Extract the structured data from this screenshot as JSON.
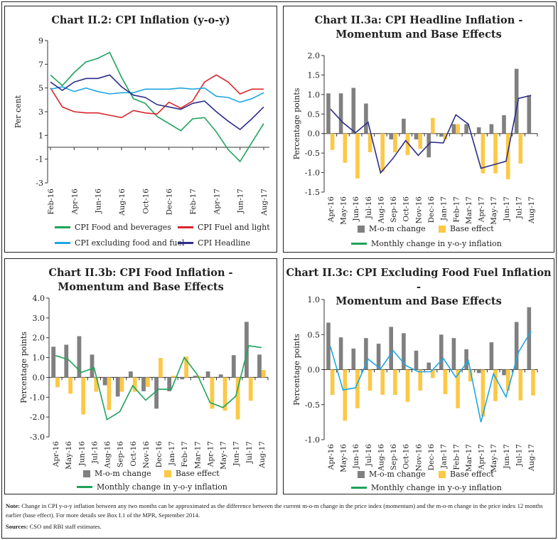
{
  "colors": {
    "food": "#1fa35a",
    "fuel": "#d9262b",
    "core": "#1ea7e1",
    "headline": "#2e2e8a",
    "mom": "#808080",
    "base": "#fcc846",
    "legend_line": "#1fa35a"
  },
  "charts": {
    "c22": {
      "title_lines": [
        "Chart II.2: CPI Inflation (y-o-y)"
      ]
    },
    "c3a": {
      "title_lines": [
        "Chart II.3a: CPI Headline Inflation -",
        "Momentum and Base Effects"
      ]
    },
    "c3b": {
      "title_lines": [
        "Chart II.3b: CPI  Food Inflation -",
        "Momentum and Base Effects"
      ]
    },
    "c3c": {
      "title_lines": [
        "Chart II.3c: CPI  Excluding Food Fuel Inflation -",
        "Momentum and Base Effects"
      ]
    }
  },
  "legend": {
    "food": "CPI Food and beverages",
    "fuel": "CPI Fuel and light",
    "core": "CPI excluding food and fuel",
    "headline": "CPI Headline",
    "mom": "M-o-m change",
    "base": "Base effect",
    "line": "Monthly change in y-o-y inflation"
  },
  "note": {
    "label": "Note:",
    "text": " Change in CPI y-o-y inflation between any two months can be approximated as the difference between the current m-o-m change in the price index (momentum) and the m-o-m change in the price index 12 months earlier (base effect). For more details  see Box I.1 of the MPR, September 2014.",
    "sources_label": "Sources:",
    "sources_text": " CSO and RBI staff estimates."
  },
  "chart_data": [
    {
      "id": "c22",
      "type": "line",
      "title": "Chart II.2: CPI Inflation (y-o-y)",
      "ylabel": "Per cent",
      "ylim": [
        -3,
        9
      ],
      "yticks": [
        "9",
        "7",
        "5",
        "3",
        "1",
        "-1",
        "-3"
      ],
      "x": [
        "Feb-16",
        "Mar-16",
        "Apr-16",
        "May-16",
        "Jun-16",
        "Jul-16",
        "Aug-16",
        "Sep-16",
        "Oct-16",
        "Nov-16",
        "Dec-16",
        "Jan-17",
        "Feb-17",
        "Mar-17",
        "Apr-17",
        "May-17",
        "Jun-17",
        "Jul-17",
        "Aug-17"
      ],
      "xtick_labels": [
        "Feb-16",
        "Apr-16",
        "Jun-16",
        "Aug-16",
        "Oct-16",
        "Dec-16",
        "Feb-17",
        "Apr-17",
        "Jun-17",
        "Aug-17"
      ],
      "series": [
        {
          "name": "CPI Food and beverages",
          "key": "food",
          "values": [
            6.1,
            5.2,
            6.3,
            7.2,
            7.5,
            8.0,
            5.9,
            4.1,
            3.7,
            2.6,
            2.0,
            1.4,
            2.4,
            2.5,
            1.3,
            -0.2,
            -1.2,
            0.4,
            2.0
          ]
        },
        {
          "name": "CPI Fuel and light",
          "key": "fuel",
          "values": [
            5.0,
            3.4,
            3.0,
            2.9,
            2.9,
            2.7,
            2.5,
            3.1,
            2.9,
            2.8,
            3.8,
            3.3,
            3.9,
            5.5,
            6.1,
            5.5,
            4.5,
            4.9,
            4.9
          ]
        },
        {
          "name": "CPI excluding food and fuel",
          "key": "core",
          "values": [
            4.9,
            5.1,
            4.7,
            5.0,
            4.7,
            4.5,
            4.6,
            4.6,
            4.9,
            4.9,
            4.9,
            5.0,
            4.9,
            5.0,
            4.3,
            4.2,
            3.8,
            4.1,
            4.6
          ]
        },
        {
          "name": "CPI Headline",
          "key": "headline",
          "values": [
            5.5,
            4.8,
            5.5,
            5.8,
            5.8,
            6.1,
            5.1,
            4.4,
            4.2,
            3.6,
            3.4,
            3.2,
            3.7,
            3.9,
            3.0,
            2.2,
            1.5,
            2.4,
            3.4
          ]
        }
      ],
      "legend": "bottom"
    },
    {
      "id": "c3a",
      "type": "bar",
      "title": "Chart II.3a: CPI Headline Inflation - Momentum and Base Effects",
      "ylabel": "Percentage points",
      "ylim": [
        -1.5,
        2.0
      ],
      "yticks": [
        "2.0",
        "1.5",
        "1.0",
        "0.5",
        "0.0",
        "-0.5",
        "-1.0",
        "-1.5"
      ],
      "categories": [
        "Apr-16",
        "May-16",
        "Jun-16",
        "Jul-16",
        "Aug-16",
        "Sep-16",
        "Oct-16",
        "Nov-16",
        "Dec-16",
        "Jan-17",
        "Feb-17",
        "Mar-17",
        "Apr-17",
        "May-17",
        "Jun-17",
        "Jul-17",
        "Aug-17"
      ],
      "series": [
        {
          "name": "M-o-m change",
          "key": "mom",
          "values": [
            1.03,
            1.03,
            1.17,
            0.77,
            0,
            -0.15,
            0.38,
            -0.15,
            -0.61,
            -0.08,
            0.24,
            0.24,
            0.16,
            0.24,
            0.47,
            1.66,
            0.98
          ]
        },
        {
          "name": "Base effect",
          "key": "base",
          "values": [
            -0.42,
            -0.75,
            -1.15,
            -0.48,
            -0.98,
            -0.48,
            -0.55,
            -0.39,
            0.4,
            -0.15,
            0.24,
            0,
            -1.02,
            -1.02,
            -1.17,
            -0.77,
            0
          ]
        },
        {
          "name": "Monthly change in y-o-y inflation",
          "key": "headline",
          "values": [
            0.63,
            0.28,
            0.02,
            0.29,
            -1.01,
            -0.63,
            -0.18,
            -0.56,
            -0.22,
            -0.24,
            0.48,
            0.24,
            -0.89,
            -0.8,
            -0.71,
            0.9,
            0.98
          ]
        }
      ],
      "legend": "bottom"
    },
    {
      "id": "c3b",
      "type": "bar",
      "title": "Chart II.3b: CPI  Food Inflation - Momentum and Base Effects",
      "ylabel": "Percentage points",
      "ylim": [
        -3.0,
        4.0
      ],
      "yticks": [
        "4.0",
        "3.0",
        "2.0",
        "1.0",
        "0.0",
        "-1.0",
        "-2.0",
        "-3.0"
      ],
      "categories": [
        "Apr-16",
        "May-16",
        "Jun-16",
        "Jul-16",
        "Aug-16",
        "Sep-16",
        "Oct-16",
        "Nov-16",
        "Dec-16",
        "Jan-17",
        "Feb-17",
        "Mar-17",
        "Apr-17",
        "May-17",
        "Jun-17",
        "Jul-17",
        "Aug-17"
      ],
      "series": [
        {
          "name": "M-o-m change",
          "key": "mom",
          "values": [
            1.55,
            1.65,
            2.08,
            1.15,
            -0.4,
            -0.97,
            0.3,
            -0.7,
            -1.58,
            -0.7,
            -0.1,
            0.08,
            0.3,
            0.15,
            1.12,
            2.8,
            1.15
          ]
        },
        {
          "name": "Base effect",
          "key": "base",
          "values": [
            -0.5,
            -0.83,
            -1.87,
            -0.72,
            -1.65,
            -0.72,
            -0.72,
            -0.48,
            0.98,
            0.08,
            1.05,
            0.08,
            -1.58,
            -1.68,
            -2.12,
            -1.18,
            0.37
          ]
        },
        {
          "name": "Monthly change in y-o-y inflation",
          "key": "food",
          "values": [
            1.1,
            0.9,
            0.25,
            0.48,
            -2.13,
            -1.73,
            -0.42,
            -1.15,
            -0.6,
            -0.6,
            1.0,
            0.15,
            -1.27,
            -1.52,
            -0.95,
            1.6,
            1.5
          ]
        }
      ],
      "legend": "bottom"
    },
    {
      "id": "c3c",
      "type": "bar",
      "title": "Chart II.3c: CPI  Excluding Food Fuel Inflation - Momentum and Base Effects",
      "ylabel": "Percentage points",
      "ylim": [
        -1.0,
        1.0
      ],
      "yticks": [
        "1.0",
        "0.5",
        "0.0",
        "-0.5",
        "-1.0"
      ],
      "categories": [
        "Apr-16",
        "May-16",
        "Jun-16",
        "Jul-16",
        "Aug-16",
        "Sep-16",
        "Oct-16",
        "Nov-16",
        "Dec-16",
        "Jan-17",
        "Feb-17",
        "Mar-17",
        "Apr-17",
        "May-17",
        "Jun-17",
        "Jul-17",
        "Aug-17"
      ],
      "series": [
        {
          "name": "M-o-m change",
          "key": "mom",
          "values": [
            0.67,
            0.46,
            0.3,
            0.45,
            0.37,
            0.61,
            0.52,
            0.27,
            0.1,
            0.5,
            0.45,
            0.29,
            -0.05,
            0.39,
            -0.08,
            0.68,
            0.89
          ]
        },
        {
          "name": "Base effect",
          "key": "base",
          "values": [
            -0.36,
            -0.73,
            -0.55,
            -0.3,
            -0.36,
            -0.36,
            -0.46,
            -0.3,
            -0.12,
            -0.35,
            -0.55,
            -0.17,
            -0.67,
            -0.45,
            -0.3,
            -0.44,
            -0.37
          ]
        },
        {
          "name": "Monthly change in y-o-y inflation",
          "key": "core",
          "values": [
            0.33,
            -0.29,
            -0.26,
            0.15,
            0.01,
            0.27,
            0.06,
            -0.03,
            -0.03,
            0.16,
            -0.11,
            0.13,
            -0.75,
            -0.06,
            -0.39,
            0.25,
            0.55
          ]
        }
      ],
      "legend": "bottom"
    }
  ]
}
